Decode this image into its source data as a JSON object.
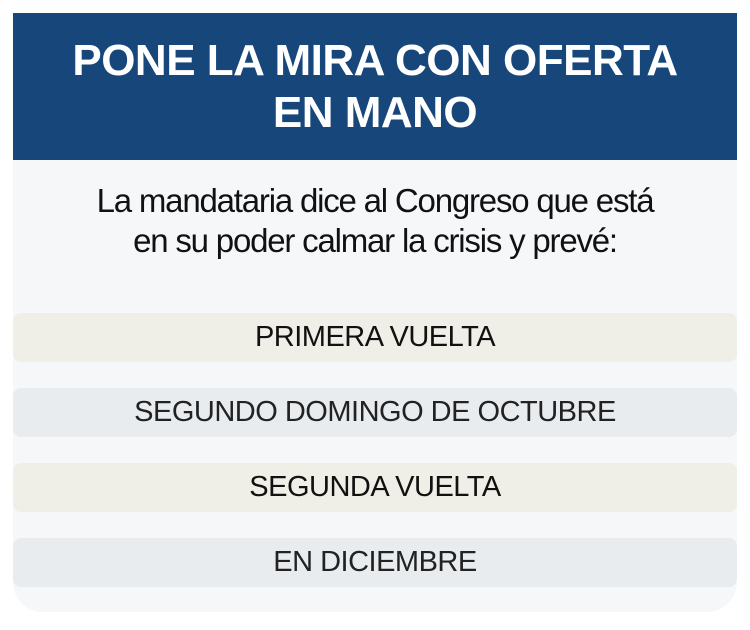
{
  "header": {
    "title_line1": "PONE LA MIRA CON OFERTA",
    "title_line2": "EN MANO"
  },
  "subtitle": {
    "line1": "La mandataria dice al Congreso que está",
    "line2": "en su poder calmar la crisis y prevé:"
  },
  "rows": [
    {
      "label": "PRIMERA VUELTA"
    },
    {
      "label": "SEGUNDO DOMINGO DE OCTUBRE"
    },
    {
      "label": "SEGUNDA VUELTA"
    },
    {
      "label": "EN DICIEMBRE"
    }
  ],
  "colors": {
    "header": "#17477a",
    "body": "#f6f7f9",
    "row_heading": "#efefe7",
    "row_detail": "#e9ecef"
  }
}
